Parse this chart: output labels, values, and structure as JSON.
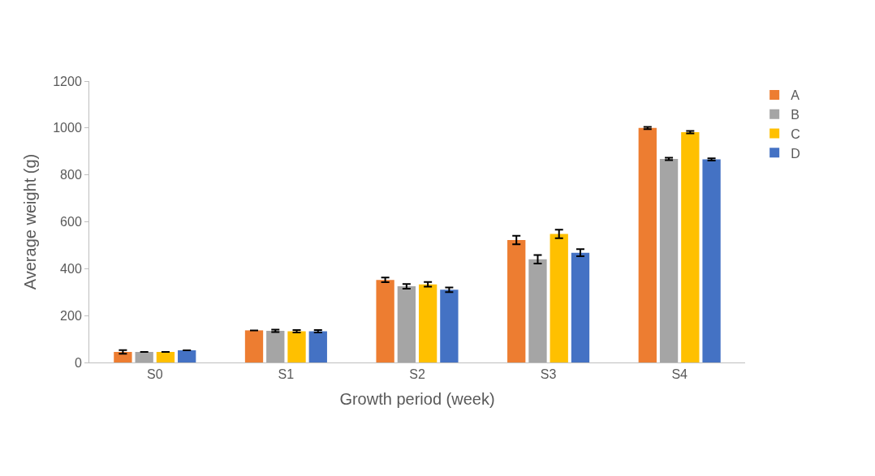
{
  "chart_data": {
    "type": "bar",
    "ylabel": "Average weight (g)",
    "xlabel": "Growth period (week)",
    "categories": [
      "S0",
      "S1",
      "S2",
      "S3",
      "S4"
    ],
    "series": [
      {
        "name": "A",
        "color": "#ed7d31",
        "values": [
          45,
          137,
          352,
          522,
          1000
        ],
        "errors": [
          8,
          null,
          10,
          18,
          5
        ]
      },
      {
        "name": "B",
        "color": "#a5a5a5",
        "values": [
          45,
          135,
          325,
          440,
          868
        ],
        "errors": [
          null,
          5,
          10,
          18,
          5
        ]
      },
      {
        "name": "C",
        "color": "#ffc000",
        "values": [
          45,
          133,
          333,
          548,
          982
        ],
        "errors": [
          null,
          5,
          10,
          18,
          5
        ]
      },
      {
        "name": "D",
        "color": "#4472c4",
        "values": [
          52,
          133,
          310,
          468,
          866
        ],
        "errors": [
          null,
          5,
          10,
          15,
          5
        ]
      }
    ],
    "ylim": [
      0,
      1200
    ],
    "yticks": [
      0,
      200,
      400,
      600,
      800,
      1000,
      1200
    ],
    "legend": "top right"
  }
}
